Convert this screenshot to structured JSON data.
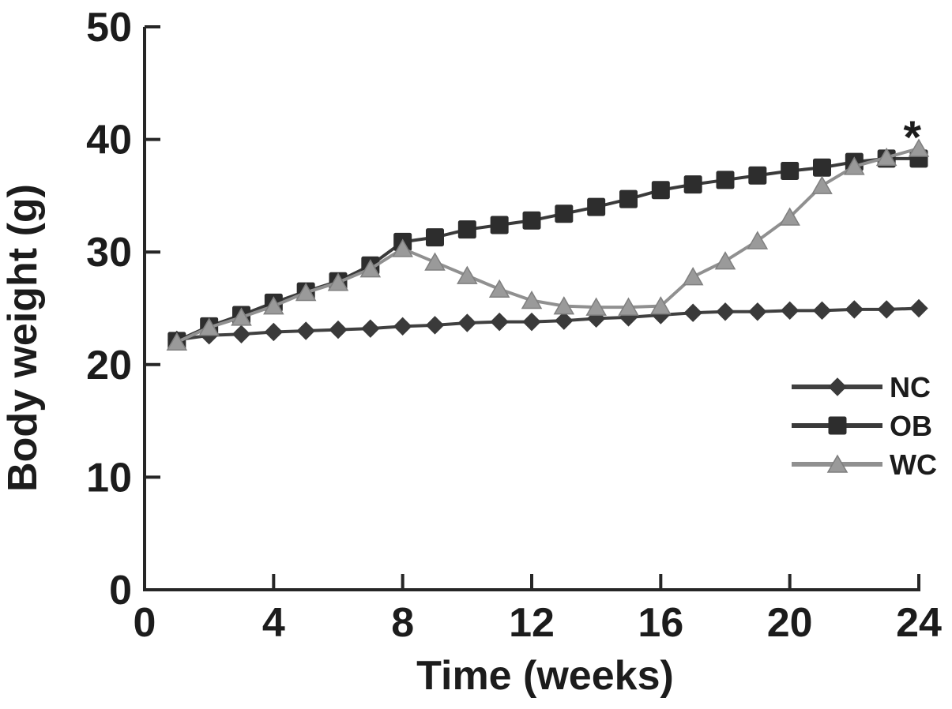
{
  "figure": {
    "background_color": "#ffffff",
    "axis_color": "#262626",
    "text_color": "#1c1c1c"
  },
  "chart_data": {
    "type": "line",
    "title": "",
    "xlabel": "Time (weeks)",
    "ylabel": "Body weight (g)",
    "xlim": [
      0,
      24
    ],
    "ylim": [
      0,
      50
    ],
    "x_ticks": [
      0,
      4,
      8,
      12,
      16,
      20,
      24
    ],
    "y_ticks": [
      0,
      10,
      20,
      30,
      40,
      50
    ],
    "grid": false,
    "legend_position": "inside-right-middle",
    "x": [
      1,
      2,
      3,
      4,
      5,
      6,
      7,
      8,
      9,
      10,
      11,
      12,
      13,
      14,
      15,
      16,
      17,
      18,
      19,
      20,
      21,
      22,
      23,
      24
    ],
    "series": [
      {
        "name": "NC",
        "marker": "diamond",
        "color": "#3a3a3a",
        "line_color": "#404040",
        "values": [
          22.2,
          22.6,
          22.7,
          22.9,
          23.0,
          23.1,
          23.2,
          23.4,
          23.5,
          23.7,
          23.8,
          23.8,
          23.9,
          24.1,
          24.2,
          24.4,
          24.6,
          24.7,
          24.7,
          24.8,
          24.8,
          24.9,
          24.9,
          25.0
        ]
      },
      {
        "name": "OB",
        "marker": "square",
        "color": "#2d2d2d",
        "line_color": "#3a3a3a",
        "values": [
          22.1,
          23.4,
          24.4,
          25.5,
          26.5,
          27.4,
          28.8,
          30.9,
          31.3,
          32.0,
          32.4,
          32.8,
          33.4,
          34.0,
          34.7,
          35.5,
          36.0,
          36.4,
          36.8,
          37.2,
          37.5,
          38.0,
          38.3,
          38.3
        ]
      },
      {
        "name": "WC",
        "marker": "triangle",
        "color": "#9a9a9a",
        "line_color": "#909090",
        "values": [
          22.0,
          23.3,
          24.2,
          25.2,
          26.4,
          27.3,
          28.5,
          30.3,
          29.1,
          27.9,
          26.7,
          25.7,
          25.2,
          25.1,
          25.1,
          25.2,
          27.8,
          29.2,
          31.0,
          33.1,
          35.9,
          37.6,
          38.4,
          39.2
        ]
      }
    ],
    "annotations": [
      {
        "text": "*",
        "x": 23.8,
        "y": 41.6
      }
    ]
  }
}
